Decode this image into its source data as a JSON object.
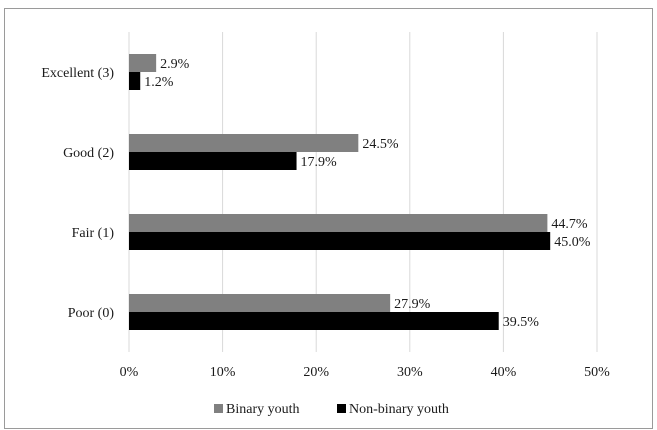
{
  "chart_data": {
    "type": "bar",
    "orientation": "horizontal",
    "categories": [
      "Excellent (3)",
      "Good (2)",
      "Fair (1)",
      "Poor (0)"
    ],
    "series": [
      {
        "name": "Binary youth",
        "values": [
          2.9,
          24.5,
          44.7,
          27.9
        ],
        "labels": [
          "2.9%",
          "24.5%",
          "44.7%",
          "27.9%"
        ],
        "color": "#808080"
      },
      {
        "name": "Non-binary youth",
        "values": [
          1.2,
          17.9,
          45.0,
          39.5
        ],
        "labels": [
          "1.2%",
          "17.9%",
          "45.0%",
          "39.5%"
        ],
        "color": "#000000"
      }
    ],
    "xlim": [
      0,
      50
    ],
    "xticks": [
      0,
      10,
      20,
      30,
      40,
      50
    ],
    "xtick_labels": [
      "0%",
      "10%",
      "20%",
      "30%",
      "40%",
      "50%"
    ],
    "grid": true,
    "legend_position": "bottom"
  }
}
